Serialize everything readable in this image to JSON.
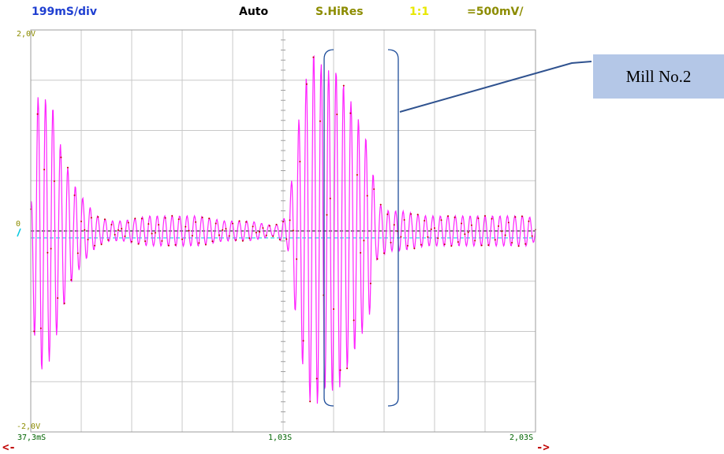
{
  "header": {
    "timebase": "199mS/div",
    "trigger_mode": "Auto",
    "acquisition": "S.HiRes",
    "probe_ratio": "1:1",
    "vertical_scale": "=500mV/"
  },
  "y_axis": {
    "top": "2,0V",
    "zero": "0",
    "bottom": "-2,0V"
  },
  "x_axis": {
    "left": "37,3mS",
    "middle": "1,03S",
    "right": "2,03S"
  },
  "nav": {
    "left_arrow": "<-",
    "right_arrow": "->"
  },
  "callout": {
    "label": "Mill No.2"
  },
  "colors": {
    "header_timebase": "#1f3fd1",
    "header_mode": "#000000",
    "header_acq": "#8c8c00",
    "header_probe": "#e8e800",
    "header_scale": "#8c8c00",
    "grid": "#c8c8c8",
    "plot_border": "#9c9c9c",
    "signal": "#ff22ff",
    "signal_dots": "#c00000",
    "zero_line": "#000000",
    "trigger_level": "#00c8e0",
    "bracket": "#1f4e9a",
    "callout_fill": "#b4c7e7"
  },
  "chart_data": {
    "type": "line",
    "xlabel": "",
    "ylabel": "",
    "xlim": [
      0.0373,
      2.03
    ],
    "ylim": [
      -2.0,
      2.0
    ],
    "x_ticks": [
      "37,3mS",
      "1,03S",
      "2,03S"
    ],
    "y_ticks": [
      "2,0V",
      "0",
      "-2,0V"
    ],
    "grid": true,
    "trigger_level_v": -0.07,
    "series": [
      {
        "x": [
          0.037,
          0.05,
          0.06,
          0.08,
          0.1,
          0.12,
          0.15,
          0.2,
          0.25,
          0.3,
          0.35,
          0.4,
          0.5,
          0.6,
          0.7,
          0.8,
          0.9,
          1.0,
          1.05,
          1.1,
          1.13,
          1.15,
          1.2,
          1.25,
          1.3,
          1.35,
          1.38,
          1.4,
          1.45,
          1.5,
          1.6,
          1.7,
          1.8,
          1.9,
          2.0,
          2.03
        ],
        "values": [
          0.2,
          -1.0,
          1.3,
          -1.4,
          1.3,
          -1.3,
          0.9,
          0.5,
          -0.3,
          0.15,
          -0.1,
          0.1,
          0.15,
          -0.15,
          0.15,
          -0.1,
          0.1,
          0.05,
          0.15,
          -1.2,
          1.6,
          -1.8,
          1.6,
          -1.6,
          1.3,
          -1.0,
          0.8,
          -0.3,
          0.2,
          -0.2,
          0.15,
          -0.15,
          0.15,
          -0.15,
          0.15,
          0.1
        ]
      }
    ]
  }
}
